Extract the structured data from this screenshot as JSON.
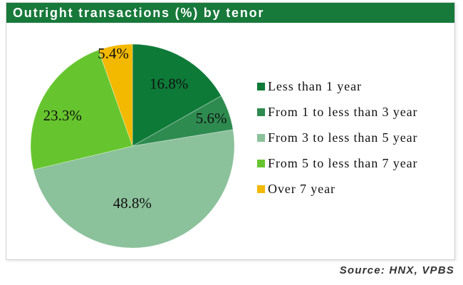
{
  "title": "Outright transactions (%) by tenor",
  "source": "Source: HNX, VPBS",
  "colors": {
    "title_bar_bg": "#17793A",
    "title_text": "#FFFFFF",
    "frame_border": "#CFCFCF",
    "label_text": "#111111",
    "source_text": "#333333"
  },
  "chart_data": {
    "type": "pie",
    "title": "Outright transactions (%) by tenor",
    "legend_position": "right",
    "labels": "inside",
    "start_angle_deg": 0,
    "direction": "clockwise",
    "slices": [
      {
        "label": "Less than 1 year",
        "value": 16.8,
        "display": "16.8%",
        "color": "#0E7A38"
      },
      {
        "label": "From 1 to less than 3 year",
        "value": 5.6,
        "display": "5.6%",
        "color": "#2E8B50"
      },
      {
        "label": "From 3 to less than 5 year",
        "value": 48.8,
        "display": "48.8%",
        "color": "#8BC19B"
      },
      {
        "label": "From 5 to less than 7 year",
        "value": 23.3,
        "display": "23.3%",
        "color": "#66C52E"
      },
      {
        "label": "Over 7 year",
        "value": 5.4,
        "display": "5.4%",
        "color": "#F3B800"
      }
    ]
  }
}
